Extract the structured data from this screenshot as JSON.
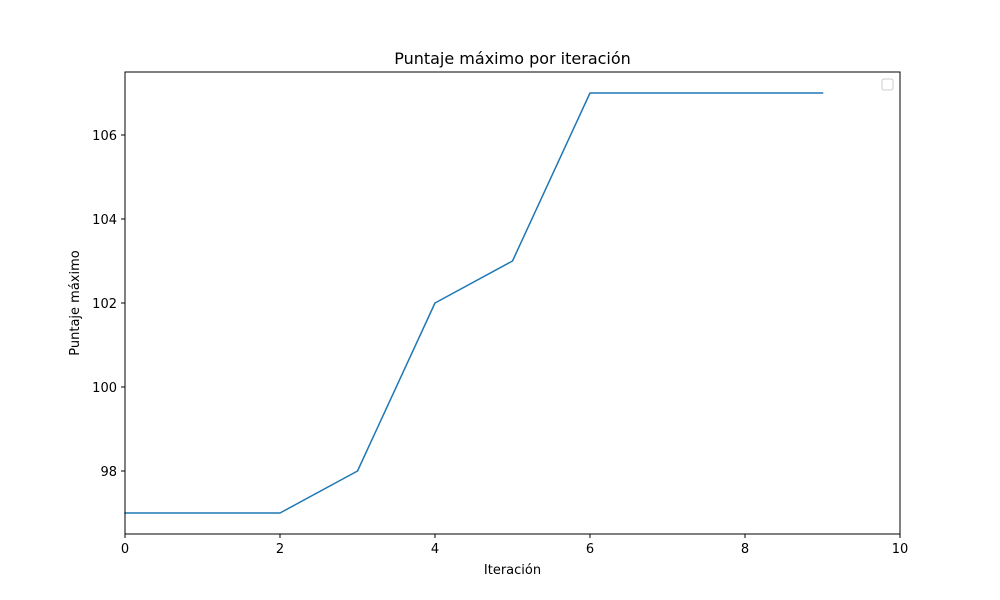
{
  "chart_data": {
    "type": "line",
    "title": "Puntaje máximo por iteración",
    "xlabel": "Iteración",
    "ylabel": "Puntaje máximo",
    "xlim": [
      0,
      10
    ],
    "ylim": [
      96.5,
      107.5
    ],
    "xticks": [
      0,
      2,
      4,
      6,
      8,
      10
    ],
    "yticks": [
      98,
      100,
      102,
      104,
      106
    ],
    "grid": false,
    "legend": "top-right (empty)",
    "series": [
      {
        "color": "#1f77b4",
        "x": [
          0,
          1,
          2,
          3,
          4,
          5,
          6,
          7,
          8,
          9
        ],
        "y": [
          97,
          97,
          97,
          98,
          102,
          103,
          107,
          107,
          107,
          107
        ]
      }
    ]
  }
}
